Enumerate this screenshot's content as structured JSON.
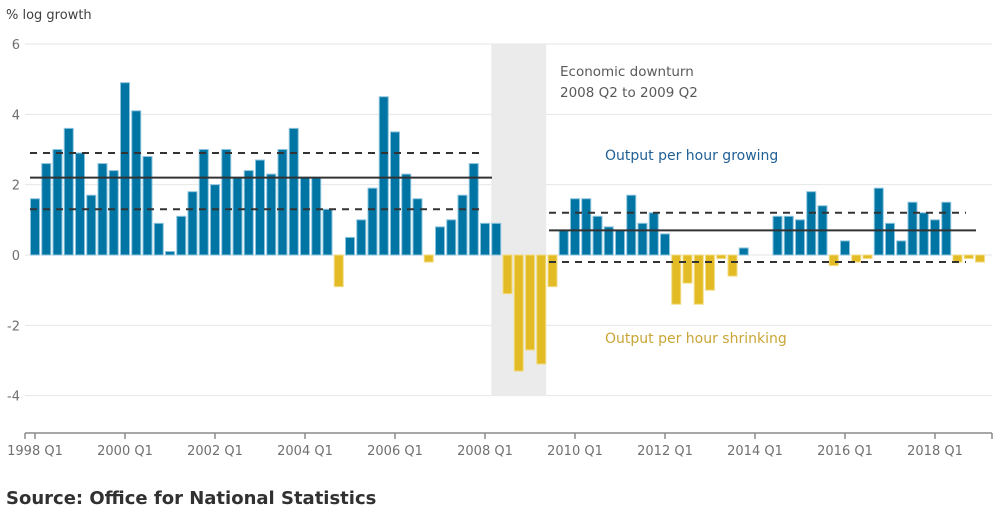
{
  "chart_data": {
    "type": "bar",
    "title": "",
    "ylabel": "% log growth",
    "xlabel": "",
    "ylim": [
      -5,
      6
    ],
    "yticks": [
      6,
      4,
      2,
      0,
      -2,
      -4
    ],
    "ytick_labels": [
      "6",
      "4",
      "2",
      "0",
      "-2",
      "-4"
    ],
    "grid": true,
    "x_start": "1998 Q1",
    "xtick_labels": [
      "1998 Q1",
      "2000 Q1",
      "2002 Q1",
      "2004 Q1",
      "2006 Q1",
      "2008 Q1",
      "2010 Q1",
      "2012 Q1",
      "2014 Q1",
      "2016 Q1",
      "2018 Q1"
    ],
    "xtick_indices": [
      0,
      8,
      16,
      24,
      32,
      40,
      48,
      56,
      64,
      72,
      80
    ],
    "values": [
      1.6,
      2.6,
      3.0,
      3.6,
      2.9,
      1.7,
      2.6,
      2.4,
      4.9,
      4.1,
      2.8,
      0.9,
      0.1,
      1.1,
      1.8,
      3.0,
      2.0,
      3.0,
      2.2,
      2.4,
      2.7,
      2.3,
      3.0,
      3.6,
      2.2,
      2.2,
      1.3,
      -0.9,
      0.5,
      1.0,
      1.9,
      4.5,
      3.5,
      2.3,
      1.6,
      -0.2,
      0.8,
      1.0,
      1.7,
      2.6,
      0.9,
      0.9,
      -1.1,
      -3.3,
      -2.7,
      -3.1,
      -0.9,
      0.7,
      1.6,
      1.6,
      1.1,
      0.8,
      0.7,
      1.7,
      0.9,
      1.2,
      0.6,
      -1.4,
      -0.8,
      -1.4,
      -1.0,
      -0.1,
      -0.6,
      0.2,
      0.0,
      0.0,
      1.1,
      1.1,
      1.0,
      1.8,
      1.4,
      -0.3,
      0.4,
      -0.2,
      -0.1,
      1.9,
      0.9,
      0.4,
      1.5,
      1.2,
      1.0,
      1.5,
      -0.2,
      -0.1,
      -0.2
    ],
    "colors": {
      "positive": "#0075a3",
      "negative": "#e3bb25",
      "shade": "#ebebeb",
      "mean_line": "#333333"
    },
    "series": [
      {
        "name": "Output per hour growing",
        "sign": "positive"
      },
      {
        "name": "Output per hour shrinking",
        "sign": "negative"
      }
    ],
    "shaded_region": {
      "from_index": 41,
      "to_index": 45,
      "label_line1": "Economic downturn",
      "label_line2": "2008 Q2 to 2009 Q2"
    },
    "reference_lines": [
      {
        "period": "pre-downturn",
        "from_index": 0,
        "to_index": 41,
        "mean": 2.2,
        "upper": 2.9,
        "lower": 1.3
      },
      {
        "period": "post-downturn",
        "from_index": 46,
        "to_index": 83,
        "mean": 0.7,
        "upper": 1.2,
        "lower": -0.2
      }
    ],
    "annotations": [
      {
        "text": "Output per hour growing",
        "color": "#206095"
      },
      {
        "text": "Output per hour shrinking",
        "color": "#c9a536"
      }
    ]
  },
  "source": "Source: Office for National Statistics"
}
